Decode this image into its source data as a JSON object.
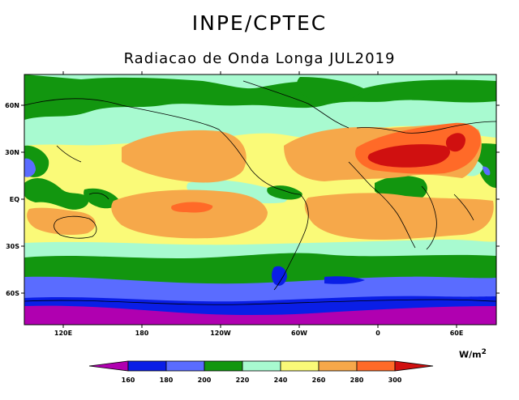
{
  "header": {
    "institution": "INPE/CPTEC",
    "title": "Radiacao de Onda Longa JUL2019"
  },
  "map": {
    "lat_labels": [
      "60N",
      "30N",
      "EQ",
      "30S",
      "60S"
    ],
    "lon_labels": [
      "120E",
      "180",
      "120W",
      "60W",
      "0",
      "60E"
    ],
    "colors": {
      "lt160": "#b000b0",
      "c160_180": "#0a1ee6",
      "c180_200": "#5a6cff",
      "c200_220": "#12960f",
      "c220_240": "#a8fad0",
      "c240_260": "#fafa78",
      "c260_280": "#f6a84a",
      "c280_300": "#ff6a28",
      "gt300": "#d01010"
    }
  },
  "colorbar": {
    "ticks": [
      "160",
      "180",
      "200",
      "220",
      "240",
      "260",
      "280",
      "300"
    ],
    "unit": "W/m",
    "unit_exp": "2"
  }
}
